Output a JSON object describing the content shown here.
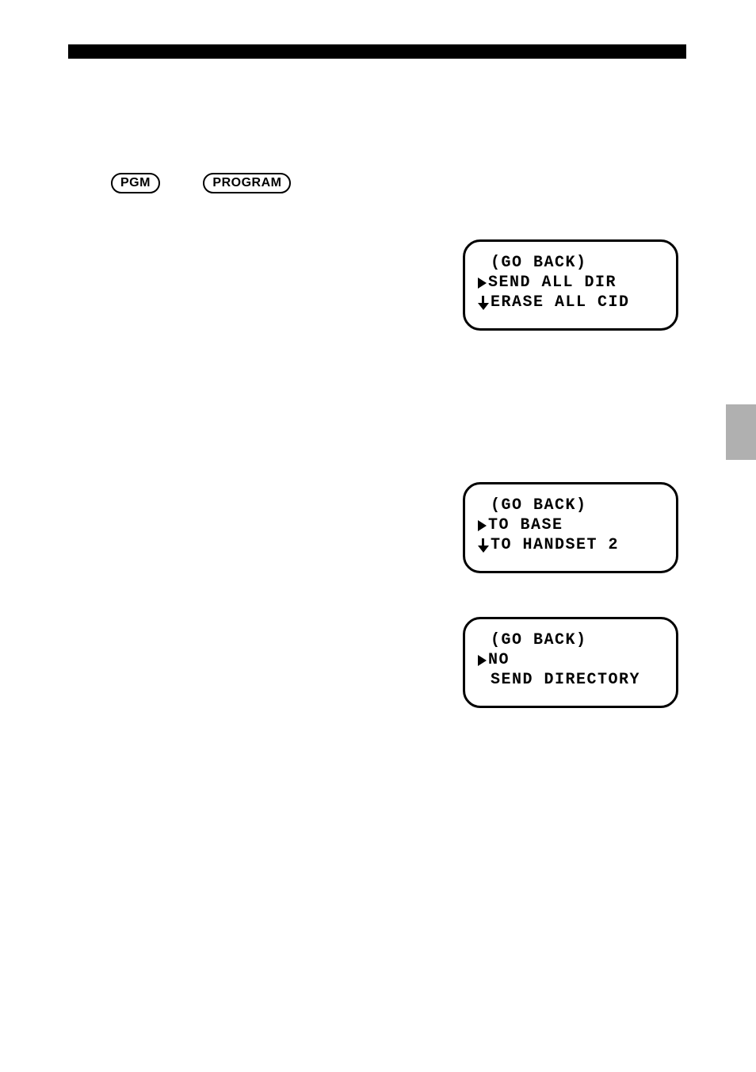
{
  "buttons": {
    "pgm": "PGM",
    "program": "PROGRAM"
  },
  "panel1": {
    "line1": "(GO BACK)",
    "line2": "SEND ALL DIR",
    "line3": "ERASE ALL CID"
  },
  "panel2": {
    "line1": "(GO BACK)",
    "line2": "TO BASE",
    "line3": "TO HANDSET 2"
  },
  "panel3": {
    "line1": "(GO BACK)",
    "line2": "NO",
    "line3": "SEND DIRECTORY"
  },
  "colors": {
    "black": "#000000",
    "white": "#ffffff",
    "gray_tab": "#b0b0b0"
  }
}
